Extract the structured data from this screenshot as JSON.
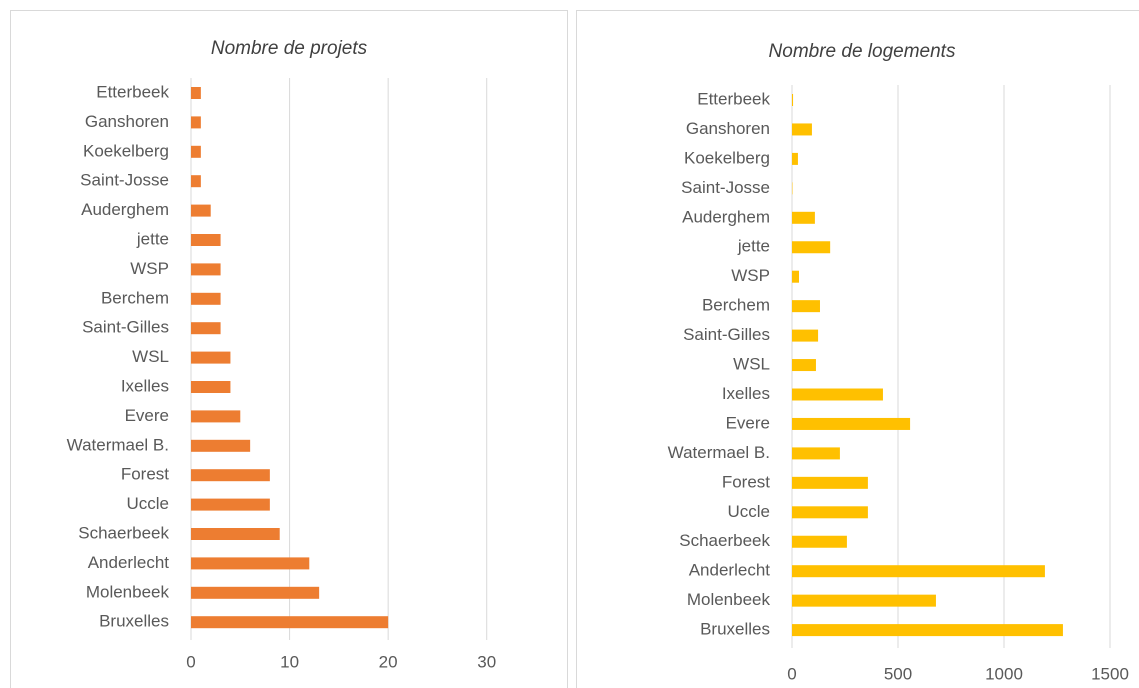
{
  "chart_data": [
    {
      "type": "bar",
      "orientation": "horizontal",
      "title": "Nombre de projets",
      "categories": [
        "Etterbeek",
        "Ganshoren",
        "Koekelberg",
        "Saint-Josse",
        "Auderghem",
        "jette",
        "WSP",
        "Berchem",
        "Saint-Gilles",
        "WSL",
        "Ixelles",
        "Evere",
        "Watermael B.",
        "Forest",
        "Uccle",
        "Schaerbeek",
        "Anderlecht",
        "Molenbeek",
        "Bruxelles"
      ],
      "values": [
        1,
        1,
        1,
        1,
        2,
        3,
        3,
        3,
        3,
        4,
        4,
        5,
        6,
        8,
        8,
        9,
        12,
        13,
        20
      ],
      "color": "#ed7d31",
      "xlim": [
        0,
        35
      ],
      "xticks": [
        0,
        10,
        20,
        30
      ],
      "grid": true
    },
    {
      "type": "bar",
      "orientation": "horizontal",
      "title": "Nombre de logements",
      "categories": [
        "Etterbeek",
        "Ganshoren",
        "Koekelberg",
        "Saint-Josse",
        "Auderghem",
        "jette",
        "WSP",
        "Berchem",
        "Saint-Gilles",
        "WSL",
        "Ixelles",
        "Evere",
        "Watermael B.",
        "Forest",
        "Uccle",
        "Schaerbeek",
        "Anderlecht",
        "Molenbeek",
        "Bruxelles"
      ],
      "values": [
        5,
        94,
        28,
        2,
        108,
        180,
        33,
        132,
        123,
        113,
        429,
        557,
        226,
        358,
        358,
        259,
        1193,
        679,
        1278
      ],
      "color": "#ffc000",
      "xlim": [
        0,
        1500
      ],
      "xticks": [
        0,
        500,
        1000,
        1500
      ],
      "grid": true
    }
  ]
}
